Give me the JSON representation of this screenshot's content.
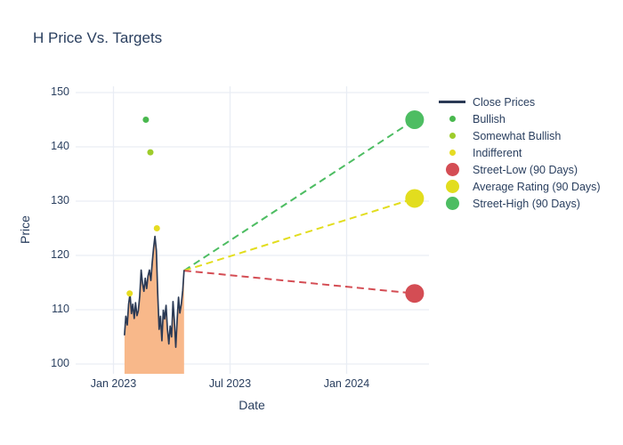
{
  "title": "H Price Vs. Targets",
  "colors": {
    "text": "#2a3f5f",
    "grid": "#e9edf4",
    "background": "#ffffff",
    "close_line": "#2b3a55",
    "close_fill": "#f8b88a"
  },
  "legend": {
    "items": [
      {
        "label": "Close Prices",
        "type": "line",
        "color": "#2b3a55"
      },
      {
        "label": "Bullish",
        "type": "dot-sm",
        "color": "#49b84e"
      },
      {
        "label": "Somewhat Bullish",
        "type": "dot-sm",
        "color": "#9ecc2b"
      },
      {
        "label": "Indifferent",
        "type": "dot-sm",
        "color": "#e6dc22"
      },
      {
        "label": "Street-Low (90 Days)",
        "type": "dot-lg",
        "color": "#d44d54"
      },
      {
        "label": "Average Rating (90 Days)",
        "type": "dot-lg",
        "color": "#e2dd1e"
      },
      {
        "label": "Street-High (90 Days)",
        "type": "dot-lg",
        "color": "#4dbd62"
      }
    ]
  },
  "chart_data": {
    "type": "line",
    "title": "H Price Vs. Targets",
    "xlabel": "Date",
    "ylabel": "Price",
    "ylim": [
      98,
      151
    ],
    "grid": true,
    "legend_position": "right",
    "y_ticks": [
      100,
      110,
      120,
      130,
      140,
      150
    ],
    "x_ticks": [
      {
        "label": "Jan 2023",
        "date": "2023-01-01"
      },
      {
        "label": "Jul 2023",
        "date": "2023-07-01"
      },
      {
        "label": "Jan 2024",
        "date": "2024-01-01"
      }
    ],
    "series": {
      "close_prices": {
        "name": "Close Prices",
        "start_date": "2023-01-18",
        "end_date": "2023-04-20",
        "values": [
          105.4,
          108.8,
          107.2,
          111.0,
          112.9,
          109.3,
          111.0,
          108.4,
          111.3,
          108.9,
          109.8,
          112.5,
          117.3,
          114.9,
          113.4,
          115.8,
          113.9,
          116.2,
          117.3,
          115.4,
          118.6,
          121.4,
          123.5,
          120.9,
          113.0,
          106.4,
          108.8,
          104.3,
          109.9,
          108.3,
          110.8,
          106.5,
          103.7,
          107.0,
          105.0,
          111.5,
          108.0,
          103.1,
          108.0,
          112.3,
          109.4,
          111.0,
          113.5,
          117.2
        ]
      },
      "ratings": [
        {
          "name": "Bullish",
          "color": "#49b84e",
          "points": [
            {
              "date": "2023-02-21",
              "value": 145
            }
          ]
        },
        {
          "name": "Somewhat Bullish",
          "color": "#9ecc2b",
          "points": [
            {
              "date": "2023-02-28",
              "value": 139
            }
          ]
        },
        {
          "name": "Indifferent",
          "color": "#e6dc22",
          "points": [
            {
              "date": "2023-01-26",
              "value": 113
            },
            {
              "date": "2023-03-08",
              "value": 125
            }
          ]
        }
      ],
      "projection_start": {
        "date": "2023-04-20",
        "value": 117.2
      },
      "targets": [
        {
          "name": "Street-High (90 Days)",
          "color": "#4dbd62",
          "date": "2024-04-16",
          "value": 145
        },
        {
          "name": "Average Rating (90 Days)",
          "color": "#e2dd1e",
          "date": "2024-04-16",
          "value": 130.5
        },
        {
          "name": "Street-Low (90 Days)",
          "color": "#d44d54",
          "date": "2024-04-16",
          "value": 113
        }
      ]
    }
  }
}
